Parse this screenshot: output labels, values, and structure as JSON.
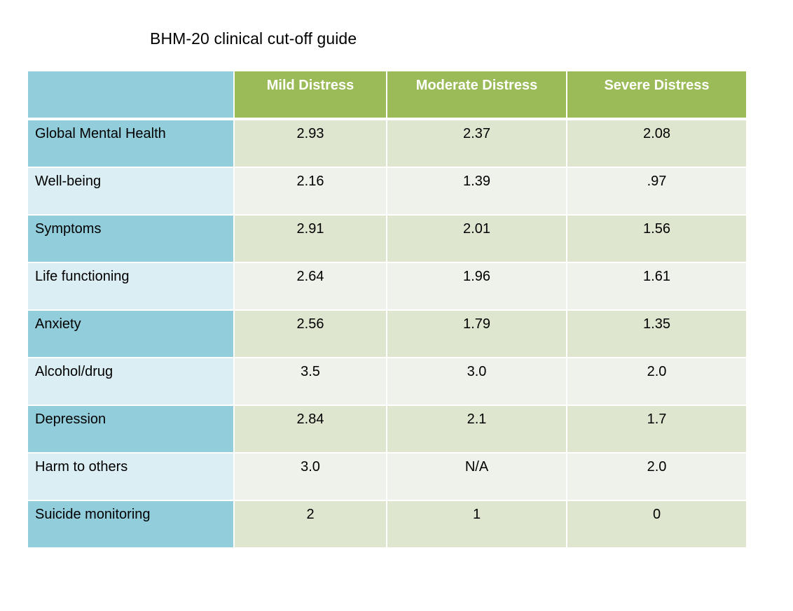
{
  "title": "BHM-20 clinical cut-off guide",
  "table": {
    "corner": "",
    "columns": [
      "Mild Distress",
      "Moderate Distress",
      "Severe Distress"
    ],
    "rows": [
      {
        "label": "Global Mental Health",
        "values": [
          "2.93",
          "2.37",
          "2.08"
        ]
      },
      {
        "label": "Well-being",
        "values": [
          "2.16",
          "1.39",
          ".97"
        ]
      },
      {
        "label": "Symptoms",
        "values": [
          "2.91",
          "2.01",
          "1.56"
        ]
      },
      {
        "label": "Life functioning",
        "values": [
          "2.64",
          "1.96",
          "1.61"
        ]
      },
      {
        "label": "Anxiety",
        "values": [
          "2.56",
          "1.79",
          "1.35"
        ]
      },
      {
        "label": "Alcohol/drug",
        "values": [
          "3.5",
          "3.0",
          "2.0"
        ]
      },
      {
        "label": "Depression",
        "values": [
          "2.84",
          "2.1",
          "1.7"
        ]
      },
      {
        "label": "Harm to others",
        "values": [
          "3.0",
          "N/A",
          "2.0"
        ]
      },
      {
        "label": "Suicide monitoring",
        "values": [
          "2",
          "1",
          "0"
        ]
      }
    ]
  },
  "colors": {
    "header_green": "#9bbb59",
    "label_blue_dark": "#92cddc",
    "label_blue_light": "#dbeef3",
    "cell_green_dark": "#dee6cf",
    "cell_green_light": "#eff2ea"
  }
}
